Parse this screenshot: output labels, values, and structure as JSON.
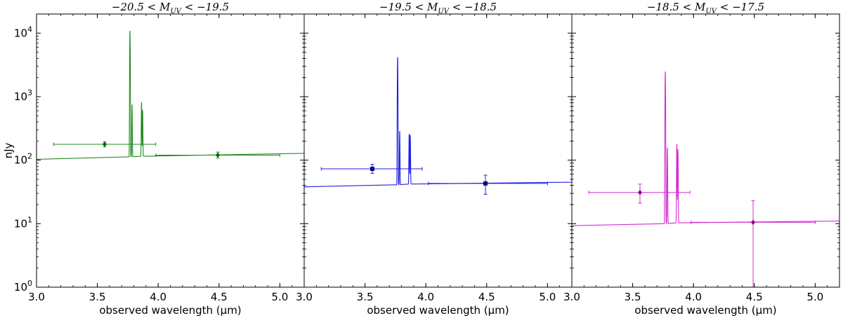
{
  "chart_data": [
    {
      "type": "line",
      "title_parts": [
        "−20.5 < ",
        "M",
        "UV",
        " < −19.5"
      ],
      "xlabel": "observed wavelength (μm)",
      "ylabel": "nJy",
      "xlim": [
        3.0,
        5.2
      ],
      "ylim": [
        1,
        20000
      ],
      "yscale": "log",
      "x_ticks": [
        "3.0",
        "3.5",
        "4.0",
        "4.5",
        "5.0"
      ],
      "y_ticks": [
        {
          "base": "10",
          "exp": "0"
        },
        {
          "base": "10",
          "exp": "1"
        },
        {
          "base": "10",
          "exp": "2"
        },
        {
          "base": "10",
          "exp": "3"
        },
        {
          "base": "10",
          "exp": "4"
        }
      ],
      "color": "#228B22",
      "marker_color": "#006400",
      "marker": "diamond",
      "spectrum": {
        "continuum": [
          [
            3.0,
            103
          ],
          [
            3.77,
            113
          ],
          [
            3.86,
            115
          ],
          [
            5.2,
            128
          ]
        ],
        "lines": [
          {
            "center": 3.768,
            "peak": 11000
          },
          {
            "center": 3.785,
            "peak": 760
          },
          {
            "center": 3.863,
            "peak": 820
          },
          {
            "center": 3.872,
            "peak": 620
          }
        ]
      },
      "photometry": [
        {
          "x": 3.56,
          "y": 178,
          "xerr": [
            3.14,
            3.98
          ],
          "yerr": [
            162,
            195
          ]
        },
        {
          "x": 4.49,
          "y": 120,
          "xerr": [
            3.98,
            5.0
          ],
          "yerr": [
            108,
            134
          ]
        }
      ]
    },
    {
      "type": "line",
      "title_parts": [
        "−19.5 < ",
        "M",
        "UV",
        " < −18.5"
      ],
      "xlabel": "observed wavelength (μm)",
      "xlim": [
        3.0,
        5.2
      ],
      "ylim": [
        1,
        20000
      ],
      "yscale": "log",
      "x_ticks": [
        "3.0",
        "3.5",
        "4.0",
        "4.5",
        "5.0"
      ],
      "color": "#1f1fe0",
      "marker_color": "#00008b",
      "marker": "square",
      "spectrum": {
        "continuum": [
          [
            3.0,
            38
          ],
          [
            3.77,
            41
          ],
          [
            3.86,
            42
          ],
          [
            5.2,
            45
          ]
        ],
        "lines": [
          {
            "center": 3.768,
            "peak": 4200
          },
          {
            "center": 3.785,
            "peak": 290
          },
          {
            "center": 3.863,
            "peak": 260
          },
          {
            "center": 3.872,
            "peak": 250
          }
        ]
      },
      "photometry": [
        {
          "x": 3.56,
          "y": 73,
          "xerr": [
            3.14,
            3.97
          ],
          "yerr": [
            62,
            86
          ]
        },
        {
          "x": 4.49,
          "y": 43,
          "xerr": [
            4.02,
            5.0
          ],
          "yerr": [
            29,
            58
          ]
        }
      ]
    },
    {
      "type": "line",
      "title_parts": [
        "−18.5 < ",
        "M",
        "UV",
        " < −17.5"
      ],
      "xlabel": "observed wavelength (μm)",
      "xlim": [
        3.0,
        5.2
      ],
      "ylim": [
        1,
        20000
      ],
      "yscale": "log",
      "x_ticks": [
        "3.0",
        "3.5",
        "4.0",
        "4.5",
        "5.0"
      ],
      "color": "#d42ad4",
      "marker_color": "#8b008b",
      "marker": "diamond",
      "spectrum": {
        "continuum": [
          [
            3.0,
            9.3
          ],
          [
            3.77,
            10.0
          ],
          [
            3.86,
            10.3
          ],
          [
            5.2,
            11.0
          ]
        ],
        "lines": [
          {
            "center": 3.768,
            "peak": 2500
          },
          {
            "center": 3.785,
            "peak": 160
          },
          {
            "center": 3.863,
            "peak": 180
          },
          {
            "center": 3.872,
            "peak": 150
          }
        ]
      },
      "photometry": [
        {
          "x": 3.56,
          "y": 31,
          "xerr": [
            3.14,
            3.97
          ],
          "yerr": [
            21,
            42
          ]
        },
        {
          "x": 4.49,
          "y": 10.5,
          "xerr": [
            3.98,
            5.0
          ],
          "yerr": [
            1.0,
            23
          ]
        }
      ]
    }
  ]
}
